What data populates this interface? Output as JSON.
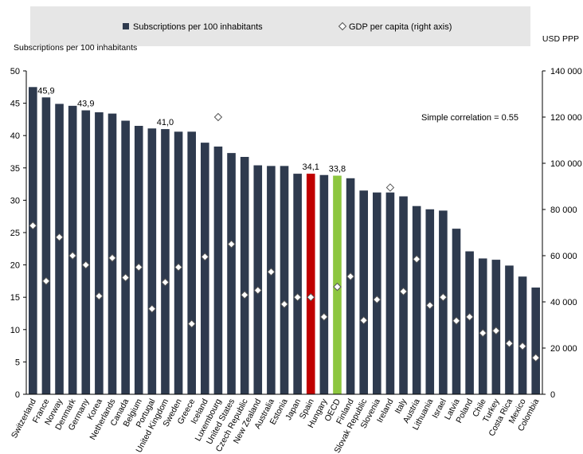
{
  "chart_data": {
    "type": "bar",
    "categories": [
      "Switzerland",
      "France",
      "Norway",
      "Denmark",
      "Germany",
      "Korea",
      "Netherlands",
      "Canada",
      "Belgium",
      "Portugal",
      "United Kingdom",
      "Sweden",
      "Greece",
      "Iceland",
      "Luxembourg",
      "United States",
      "Czech Republic",
      "New Zealand",
      "Australia",
      "Estonia",
      "Japan",
      "Spain",
      "Hungary",
      "OECD",
      "Finland",
      "Slovak Republic",
      "Slovenia",
      "Ireland",
      "Italy",
      "Austria",
      "Lithuania",
      "Israel",
      "Latvia",
      "Poland",
      "Chile",
      "Turkey",
      "Costa Rica",
      "Mexico",
      "Colombia"
    ],
    "series": [
      {
        "name": "Subscriptions per 100 inhabitants",
        "type": "bar",
        "axis": "left",
        "values": [
          47.5,
          45.9,
          44.9,
          44.6,
          43.9,
          43.6,
          43.4,
          42.3,
          41.5,
          41.1,
          41.0,
          40.6,
          40.6,
          38.9,
          38.3,
          37.3,
          36.7,
          35.4,
          35.3,
          35.3,
          34.1,
          34.1,
          33.9,
          33.8,
          33.4,
          31.5,
          31.2,
          31.2,
          30.6,
          29.1,
          28.6,
          28.4,
          25.6,
          22.1,
          21.0,
          20.8,
          19.9,
          18.2,
          16.5
        ]
      },
      {
        "name": "GDP per capita (right axis)",
        "type": "scatter",
        "axis": "right",
        "values": [
          73000,
          49000,
          68000,
          60000,
          56000,
          42500,
          59000,
          50500,
          55000,
          37000,
          48500,
          55000,
          30500,
          59500,
          120000,
          65000,
          43000,
          45000,
          53000,
          39000,
          42000,
          42000,
          33500,
          46500,
          51000,
          32000,
          41000,
          89500,
          44500,
          58500,
          38500,
          42000,
          31800,
          33500,
          26500,
          27500,
          22000,
          20800,
          15800
        ]
      }
    ],
    "highlight": {
      "Spain": "#c00000",
      "OECD": "#8dc63f"
    },
    "data_labels": [
      {
        "category": "France",
        "text": "45,9"
      },
      {
        "category": "Germany",
        "text": "43,9"
      },
      {
        "category": "United Kingdom",
        "text": "41,0"
      },
      {
        "category": "Spain",
        "text": "34,1"
      },
      {
        "category": "OECD",
        "text": "33,8"
      }
    ],
    "left_axis": {
      "title": "Subscriptions  per 100 inhabitants",
      "ylim": [
        0,
        50
      ],
      "ticks": [
        "0",
        "5",
        "10",
        "15",
        "20",
        "25",
        "30",
        "35",
        "40",
        "45",
        "50"
      ]
    },
    "right_axis": {
      "title": "USD PPP",
      "ylim": [
        0,
        140000
      ],
      "ticks": [
        "0",
        "20 000",
        "40 000",
        "60 000",
        "80 000",
        "100 000",
        "120 000",
        "140 000"
      ]
    },
    "annotation": "Simple correlation = 0.55",
    "legend": [
      {
        "label": "Subscriptions per 100 inhabitants",
        "marker": "square"
      },
      {
        "label": "GDP per capita (right axis)",
        "marker": "diamond"
      }
    ],
    "legend_position": "top",
    "grid": false,
    "colors": {
      "bar": "#2e3a4e",
      "spain": "#c00000",
      "oecd": "#8dc63f",
      "legend_bg": "#e6e6e6",
      "diamond_fill": "#ffffff",
      "diamond_stroke": "#555555"
    }
  }
}
